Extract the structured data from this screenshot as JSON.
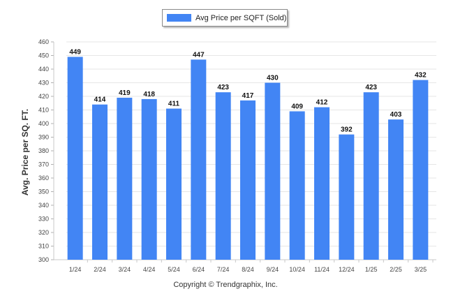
{
  "legend": {
    "label": "Avg Price per SQFT (Sold)",
    "color": "#4285f4"
  },
  "copyright": "Copyright © Trendgraphix, Inc.",
  "chart_data": {
    "type": "bar",
    "categories": [
      "1/24",
      "2/24",
      "3/24",
      "4/24",
      "5/24",
      "6/24",
      "7/24",
      "8/24",
      "9/24",
      "10/24",
      "11/24",
      "12/24",
      "1/25",
      "2/25",
      "3/25"
    ],
    "series": [
      {
        "name": "Avg Price per SQFT (Sold)",
        "values": [
          449,
          414,
          419,
          418,
          411,
          447,
          423,
          417,
          430,
          409,
          412,
          392,
          423,
          403,
          432
        ]
      }
    ],
    "data_labels": [
      "449",
      "414",
      "419",
      "418",
      "411",
      "447",
      "423",
      "417",
      "430",
      "409",
      "412",
      "392",
      "423",
      "403",
      "432"
    ],
    "ylabel": "Avg. Price per SQ. FT.",
    "ylim": [
      300,
      460
    ],
    "yticks": [
      "300",
      "310",
      "320",
      "330",
      "340",
      "350",
      "360",
      "370",
      "380",
      "390",
      "400",
      "410",
      "420",
      "430",
      "440",
      "450",
      "460"
    ],
    "grid": true,
    "legend_position": "top-center",
    "bar_color": "#4285f4"
  }
}
